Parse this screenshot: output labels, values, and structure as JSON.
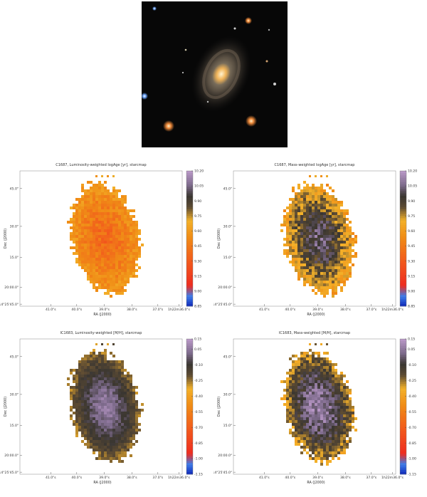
{
  "chart_data": [
    {
      "type": "heatmap",
      "title": "C1687, Luminosity-weighted logAge [yr], starcmap",
      "xlabel": "RA (J2000)",
      "ylabel": "Dec (J2000)",
      "xticks": [
        "41.0\"s",
        "40.0\"s",
        "39.0\"s",
        "38.0\"s",
        "37.0\"s",
        "1h22m36.0\"s"
      ],
      "yticks": [
        "45.0\"",
        "30.0\"",
        "15.0\"",
        "20:00.0\"",
        "+14°25'45.0\""
      ],
      "colorbar": {
        "min": 8.85,
        "max": 10.2,
        "ticks": [
          8.85,
          9.0,
          9.15,
          9.3,
          9.45,
          9.6,
          9.75,
          9.9,
          10.05,
          10.2
        ],
        "labels": [
          "8.85",
          "9.00",
          "9.15",
          "9.30",
          "9.45",
          "9.60",
          "9.75",
          "9.90",
          "10.05",
          "10.20"
        ]
      },
      "map": {
        "center": 9.38,
        "edge": 9.62,
        "noise": 0.09
      }
    },
    {
      "type": "heatmap",
      "title": "C1687, Mass-weighted logAge [yr], starcmap",
      "xlabel": "RA (J2000)",
      "ylabel": "Dec (J2000)",
      "xticks": [
        "41.0\"s",
        "40.0\"s",
        "39.0\"s",
        "38.0\"s",
        "37.0\"s",
        "1h22m36.0\"s"
      ],
      "yticks": [
        "45.0\"",
        "30.0\"",
        "15.0\"",
        "20:00.0\"",
        "+14°25'45.0\""
      ],
      "colorbar": {
        "min": 8.85,
        "max": 10.2,
        "ticks": [
          8.85,
          9.0,
          9.15,
          9.3,
          9.45,
          9.6,
          9.75,
          9.9,
          10.05,
          10.2
        ],
        "labels": [
          "8.85",
          "9.00",
          "9.15",
          "9.30",
          "9.45",
          "9.60",
          "9.75",
          "9.90",
          "10.05",
          "10.20"
        ]
      },
      "map": {
        "center": 10.05,
        "edge": 9.62,
        "noise": 0.12
      }
    },
    {
      "type": "heatmap",
      "title": "IC1683, Luminosity-weighted [M/H], starcmap",
      "xlabel": "RA (J2000)",
      "ylabel": "Dec (J2000)",
      "xticks": [
        "41.0\"s",
        "40.0\"s",
        "39.0\"s",
        "38.0\"s",
        "37.0\"s",
        "1h22m36.0\"s"
      ],
      "yticks": [
        "45.0\"",
        "30.0\"",
        "15.0\"",
        "20:00.0\"",
        "+14°25'45.0\""
      ],
      "colorbar": {
        "min": -1.15,
        "max": 0.15,
        "ticks": [
          -1.15,
          -1.0,
          -0.85,
          -0.7,
          -0.55,
          -0.4,
          -0.25,
          -0.1,
          0.05,
          0.15
        ],
        "labels": [
          "-1.15",
          "-1.00",
          "-0.85",
          "-0.70",
          "-0.55",
          "-0.40",
          "-0.25",
          "-0.10",
          "0.05",
          "0.15"
        ]
      },
      "map": {
        "center": 0.08,
        "edge": -0.25,
        "noise": 0.05
      }
    },
    {
      "type": "heatmap",
      "title": "IC1683, Mass-weighted [M/H], starcmap",
      "xlabel": "RA (J2000)",
      "ylabel": "Dec (J2000)",
      "xticks": [
        "41.0\"s",
        "40.0\"s",
        "39.0\"s",
        "38.0\"s",
        "37.0\"s",
        "1h22m36.0\"s"
      ],
      "yticks": [
        "45.0\"",
        "30.0\"",
        "15.0\"",
        "20:00.0\"",
        "+14°25'45.0\""
      ],
      "colorbar": {
        "min": -1.15,
        "max": 0.15,
        "ticks": [
          -1.15,
          -1.0,
          -0.85,
          -0.7,
          -0.55,
          -0.4,
          -0.25,
          -0.1,
          0.05,
          0.15
        ],
        "labels": [
          "-1.15",
          "-1.00",
          "-0.85",
          "-0.70",
          "-0.55",
          "-0.40",
          "-0.25",
          "-0.10",
          "0.05",
          "0.15"
        ]
      },
      "map": {
        "center": 0.1,
        "edge": -0.3,
        "noise": 0.1
      }
    }
  ]
}
